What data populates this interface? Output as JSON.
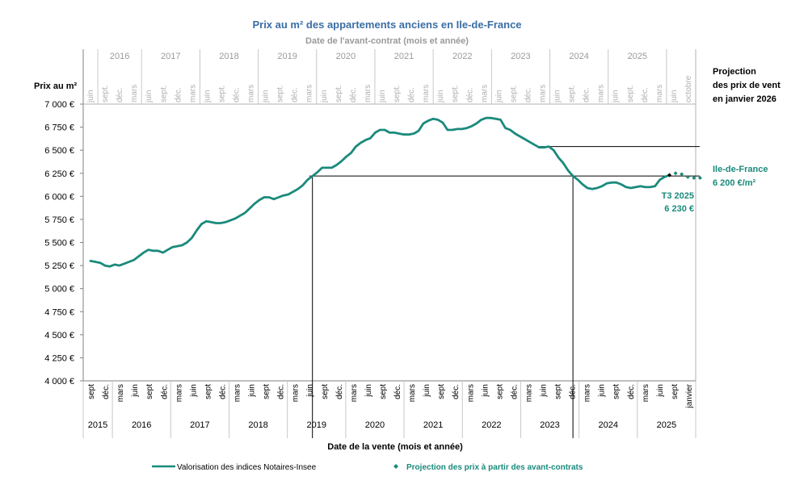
{
  "chart_data": {
    "type": "line",
    "title": "Prix au m² des appartements anciens en Ile-de-France",
    "subtitle": "Date de l'avant-contrat  (mois et année)",
    "ylabel": "Prix au  m²",
    "xlabel": "Date de la vente (mois et année)",
    "ylim": [
      4000,
      7000
    ],
    "yticks": [
      "7 000 €",
      "6 750 €",
      "6 500 €",
      "6 250 €",
      "6 000 €",
      "5 750 €",
      "5 500 €",
      "5 250 €",
      "5 000 €",
      "4 750 €",
      "4 500 €",
      "4 250 €",
      "4 000 €"
    ],
    "ytick_values": [
      7000,
      6750,
      6500,
      6250,
      6000,
      5750,
      5500,
      5250,
      5000,
      4750,
      4500,
      4250,
      4000
    ],
    "x_months_bottom": [
      "sept",
      "déc.",
      "mars",
      "juin",
      "sept",
      "déc.",
      "mars",
      "juin",
      "sept",
      "déc.",
      "mars",
      "juin",
      "sept",
      "déc.",
      "mars",
      "juin",
      "sept",
      "déc.",
      "mars",
      "juin",
      "sept",
      "déc.",
      "mars",
      "juin",
      "sept",
      "déc.",
      "mars",
      "juin",
      "sept",
      "déc.",
      "mars",
      "juin",
      "sept",
      "déc.",
      "mars",
      "juin",
      "sept",
      "déc.",
      "mars",
      "juin",
      "sept",
      "janvier"
    ],
    "x_years_bottom": [
      "2015",
      "2016",
      "2017",
      "2018",
      "2019",
      "2020",
      "2021",
      "2022",
      "2023",
      "2024",
      "2025"
    ],
    "x_months_top": [
      "juin",
      "sept.",
      "déc.",
      "mars",
      "juin",
      "sept.",
      "déc.",
      "mars",
      "juin",
      "sept.",
      "déc.",
      "mars",
      "juin",
      "sept.",
      "déc.",
      "mars",
      "juin",
      "sept.",
      "déc.",
      "mars",
      "juin",
      "sept.",
      "déc.",
      "mars",
      "juin",
      "sept.",
      "déc.",
      "mars",
      "juin",
      "sept.",
      "déc.",
      "mars",
      "juin",
      "sept.",
      "déc.",
      "mars",
      "juin",
      "sept.",
      "déc.",
      "mars",
      "juin",
      "octobre"
    ],
    "x_years_top": [
      "2016",
      "2017",
      "2018",
      "2019",
      "2020",
      "2021",
      "2022",
      "2023",
      "2024",
      "2025"
    ],
    "series": [
      {
        "name": "Valorisation des indices Notaires-Insee",
        "color": "#1a8a7c",
        "values": [
          5300,
          5290,
          5280,
          5250,
          5240,
          5260,
          5250,
          5270,
          5290,
          5310,
          5350,
          5390,
          5420,
          5410,
          5410,
          5390,
          5420,
          5450,
          5460,
          5470,
          5500,
          5550,
          5630,
          5700,
          5730,
          5720,
          5710,
          5710,
          5720,
          5740,
          5760,
          5790,
          5820,
          5870,
          5920,
          5960,
          5990,
          5990,
          5970,
          5990,
          6010,
          6020,
          6050,
          6080,
          6120,
          6180,
          6220,
          6260,
          6310,
          6310,
          6310,
          6340,
          6380,
          6430,
          6470,
          6540,
          6580,
          6610,
          6630,
          6690,
          6720,
          6720,
          6690,
          6690,
          6680,
          6670,
          6670,
          6680,
          6710,
          6790,
          6820,
          6840,
          6830,
          6800,
          6720,
          6720,
          6730,
          6730,
          6740,
          6760,
          6790,
          6830,
          6850,
          6850,
          6840,
          6830,
          6740,
          6720,
          6680,
          6650,
          6620,
          6590,
          6560,
          6530,
          6530,
          6540,
          6500,
          6420,
          6360,
          6280,
          6220,
          6180,
          6130,
          6090,
          6080,
          6090,
          6110,
          6140,
          6150,
          6150,
          6130,
          6100,
          6090,
          6100,
          6110,
          6100,
          6100,
          6110,
          6180,
          6210,
          6230
        ]
      },
      {
        "name": "Projection des prix à partir des avant-contrats",
        "color": "#1a8a7c",
        "values": [
          6230,
          6250,
          6240,
          6210,
          6200,
          6200
        ]
      }
    ],
    "annotations": {
      "projection_title": [
        "Projection",
        "des prix de vent",
        "en janvier 2026"
      ],
      "idf_label": "Ile-de-France",
      "idf_value": "6 200 €/m²",
      "t3_label": "T3 2025",
      "t3_value": "6 230 €",
      "ref_levels": [
        6540,
        6220
      ]
    },
    "legend": [
      {
        "label": "Valorisation des indices Notaires-Insee",
        "marker": "line"
      },
      {
        "label": "Projection des prix à partir des avant-contrats",
        "marker": "diamond"
      }
    ],
    "legend_position": "bottom",
    "grid": false
  }
}
